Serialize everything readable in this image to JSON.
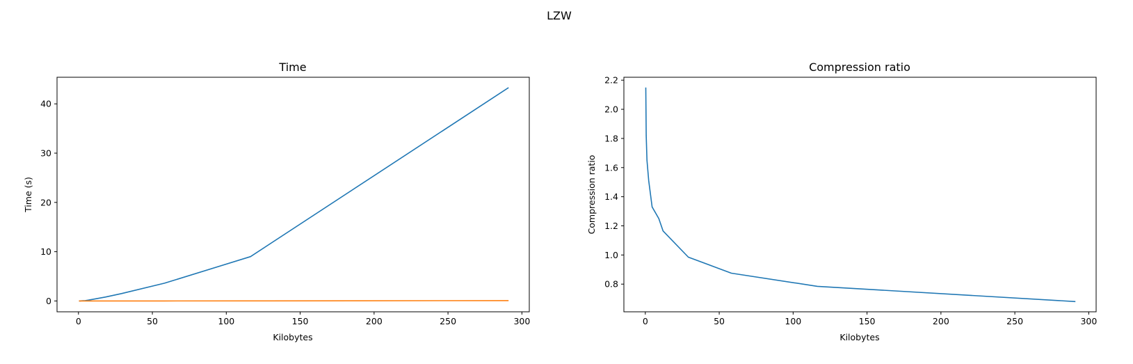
{
  "figure": {
    "suptitle": "LZW"
  },
  "colors": {
    "series_a": "#1f77b4",
    "series_b": "#ff7f0e"
  },
  "chart_data": [
    {
      "type": "line",
      "title": "Time",
      "xlabel": "Kilobytes",
      "ylabel": "Time (s)",
      "xlim": [
        -14.5,
        305
      ],
      "ylim": [
        -2.2,
        45.4
      ],
      "xticks": [
        0,
        50,
        100,
        150,
        200,
        250,
        300
      ],
      "yticks": [
        0,
        10,
        20,
        30,
        40
      ],
      "grid": false,
      "legend": false,
      "series": [
        {
          "color": "#1f77b4",
          "x": [
            0.3,
            0.6,
            1.1,
            2.3,
            4.6,
            9.1,
            18.2,
            29.1,
            58.2,
            116.4,
            291
          ],
          "y": [
            0.0,
            0.0,
            0.01,
            0.03,
            0.08,
            0.3,
            0.8,
            1.5,
            3.6,
            9.0,
            43.3
          ]
        },
        {
          "color": "#ff7f0e",
          "x": [
            0.3,
            0.6,
            1.1,
            2.3,
            4.6,
            9.1,
            18.2,
            29.1,
            58.2,
            116.4,
            291
          ],
          "y": [
            0.0,
            0.0,
            0.0,
            0.0,
            0.0,
            0.0,
            0.0,
            0.0,
            0.0,
            0.02,
            0.08
          ]
        }
      ]
    },
    {
      "type": "line",
      "title": "Compression ratio",
      "xlabel": "Kilobytes",
      "ylabel": "Compression ratio",
      "xlim": [
        -14.5,
        305
      ],
      "ylim": [
        0.61,
        2.22
      ],
      "xticks": [
        0,
        50,
        100,
        150,
        200,
        250,
        300
      ],
      "yticks": [
        0.8,
        1.0,
        1.2,
        1.4,
        1.6,
        1.8,
        2.0,
        2.2
      ],
      "grid": false,
      "legend": false,
      "series": [
        {
          "color": "#1f77b4",
          "x": [
            0.3,
            0.6,
            1.1,
            2.3,
            4.6,
            9.1,
            12,
            29.1,
            58.2,
            116.4,
            291
          ],
          "y": [
            2.15,
            1.82,
            1.65,
            1.51,
            1.33,
            1.25,
            1.165,
            0.985,
            0.875,
            0.785,
            0.68
          ]
        }
      ]
    }
  ]
}
